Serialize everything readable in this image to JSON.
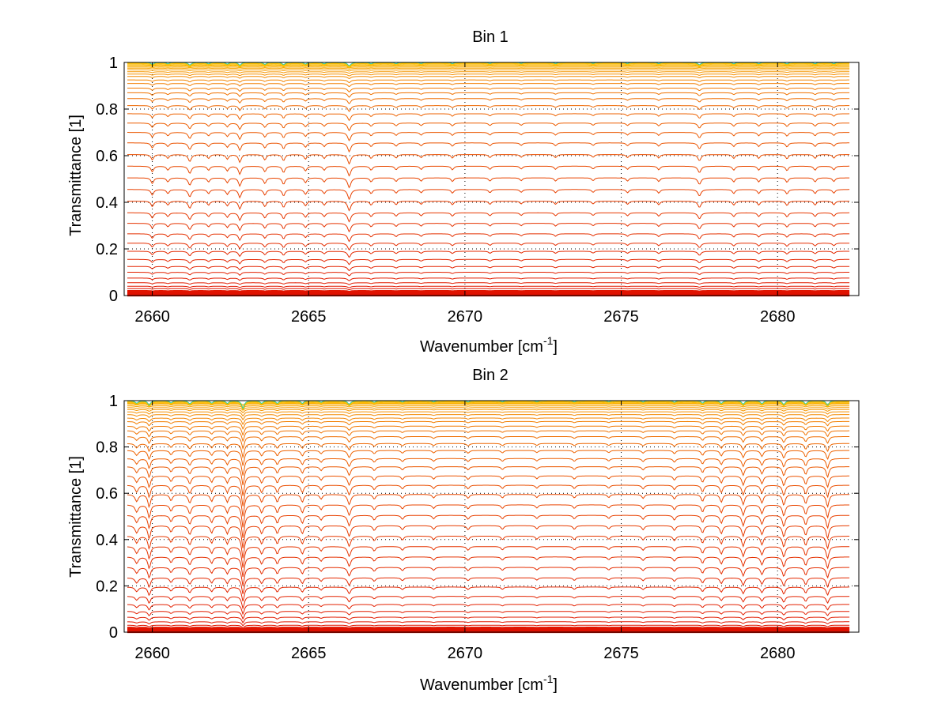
{
  "figure": {
    "background": "#ffffff",
    "axis_color": "#000000",
    "grid_color": "#000000",
    "line_color_low": "#e01000",
    "line_color_high": "#ffcc00",
    "top_edge_color": "#33cc99"
  },
  "chart_data": [
    {
      "type": "line",
      "title": "Bin 1",
      "xlabel": "Wavenumber [cm",
      "xlabel_sup": "-1",
      "xlabel_close": "]",
      "ylabel": "Transmittance [1]",
      "xlim": [
        2659.1,
        2682.6
      ],
      "ylim": [
        0,
        1
      ],
      "grid": true,
      "legend": "none",
      "xticks": [
        2660,
        2665,
        2670,
        2675,
        2680
      ],
      "xtick_labels": [
        "2660",
        "2665",
        "2670",
        "2675",
        "2680"
      ],
      "yticks": [
        0,
        0.2,
        0.4,
        0.6,
        0.8,
        1
      ],
      "ytick_labels": [
        "0",
        "0.2",
        "0.4",
        "0.6",
        "0.8",
        "1"
      ],
      "x_range": [
        2659.2,
        2682.3
      ],
      "series_levels": [
        0.0,
        0.005,
        0.01,
        0.015,
        0.02,
        0.03,
        0.04,
        0.055,
        0.075,
        0.1,
        0.125,
        0.155,
        0.19,
        0.225,
        0.265,
        0.31,
        0.355,
        0.405,
        0.455,
        0.505,
        0.555,
        0.605,
        0.655,
        0.7,
        0.74,
        0.78,
        0.815,
        0.845,
        0.87,
        0.89,
        0.91,
        0.925,
        0.94,
        0.95,
        0.96,
        0.968,
        0.975,
        0.98,
        0.985,
        0.99,
        0.994,
        0.997,
        1.0
      ],
      "absorption_lines": [
        {
          "x": 2660.0,
          "depth": 0.7,
          "width": 0.05
        },
        {
          "x": 2660.5,
          "depth": 0.5,
          "width": 0.05
        },
        {
          "x": 2661.2,
          "depth": 0.9,
          "width": 0.06
        },
        {
          "x": 2661.8,
          "depth": 0.5,
          "width": 0.05
        },
        {
          "x": 2662.4,
          "depth": 0.6,
          "width": 0.05
        },
        {
          "x": 2662.8,
          "depth": 1.0,
          "width": 0.05
        },
        {
          "x": 2663.6,
          "depth": 0.7,
          "width": 0.05
        },
        {
          "x": 2664.2,
          "depth": 0.8,
          "width": 0.05
        },
        {
          "x": 2664.9,
          "depth": 0.6,
          "width": 0.05
        },
        {
          "x": 2665.5,
          "depth": 0.5,
          "width": 0.05
        },
        {
          "x": 2666.3,
          "depth": 1.2,
          "width": 0.06
        },
        {
          "x": 2667.0,
          "depth": 0.5,
          "width": 0.05
        },
        {
          "x": 2667.8,
          "depth": 0.45,
          "width": 0.05
        },
        {
          "x": 2668.6,
          "depth": 0.4,
          "width": 0.05
        },
        {
          "x": 2669.6,
          "depth": 0.45,
          "width": 0.05
        },
        {
          "x": 2670.8,
          "depth": 0.4,
          "width": 0.05
        },
        {
          "x": 2671.8,
          "depth": 0.35,
          "width": 0.05
        },
        {
          "x": 2672.9,
          "depth": 0.4,
          "width": 0.05
        },
        {
          "x": 2674.1,
          "depth": 0.35,
          "width": 0.05
        },
        {
          "x": 2675.2,
          "depth": 0.4,
          "width": 0.05
        },
        {
          "x": 2676.2,
          "depth": 0.45,
          "width": 0.05
        },
        {
          "x": 2677.5,
          "depth": 0.8,
          "width": 0.06
        },
        {
          "x": 2678.6,
          "depth": 0.5,
          "width": 0.05
        },
        {
          "x": 2679.4,
          "depth": 0.5,
          "width": 0.05
        },
        {
          "x": 2680.3,
          "depth": 0.55,
          "width": 0.05
        },
        {
          "x": 2681.2,
          "depth": 0.5,
          "width": 0.05
        },
        {
          "x": 2681.8,
          "depth": 0.45,
          "width": 0.05
        }
      ]
    },
    {
      "type": "line",
      "title": "Bin 2",
      "xlabel": "Wavenumber [cm",
      "xlabel_sup": "-1",
      "xlabel_close": "]",
      "ylabel": "Transmittance [1]",
      "xlim": [
        2659.1,
        2682.6
      ],
      "ylim": [
        0,
        1
      ],
      "grid": true,
      "legend": "none",
      "xticks": [
        2660,
        2665,
        2670,
        2675,
        2680
      ],
      "xtick_labels": [
        "2660",
        "2665",
        "2670",
        "2675",
        "2680"
      ],
      "yticks": [
        0,
        0.2,
        0.4,
        0.6,
        0.8,
        1
      ],
      "ytick_labels": [
        "0",
        "0.2",
        "0.4",
        "0.6",
        "0.8",
        "1"
      ],
      "x_range": [
        2659.2,
        2682.3
      ],
      "series_levels": [
        0.0,
        0.005,
        0.01,
        0.015,
        0.02,
        0.03,
        0.045,
        0.065,
        0.09,
        0.12,
        0.155,
        0.195,
        0.235,
        0.28,
        0.325,
        0.37,
        0.415,
        0.46,
        0.505,
        0.55,
        0.595,
        0.635,
        0.675,
        0.715,
        0.75,
        0.785,
        0.815,
        0.845,
        0.87,
        0.89,
        0.91,
        0.925,
        0.94,
        0.952,
        0.962,
        0.97,
        0.977,
        0.983,
        0.988,
        0.992,
        0.995,
        0.998,
        1.0
      ],
      "absorption_lines": [
        {
          "x": 2659.5,
          "depth": 0.9,
          "width": 0.06
        },
        {
          "x": 2659.9,
          "depth": 1.6,
          "width": 0.05
        },
        {
          "x": 2660.6,
          "depth": 0.8,
          "width": 0.05
        },
        {
          "x": 2661.2,
          "depth": 1.1,
          "width": 0.06
        },
        {
          "x": 2661.9,
          "depth": 0.9,
          "width": 0.05
        },
        {
          "x": 2662.4,
          "depth": 1.0,
          "width": 0.05
        },
        {
          "x": 2662.9,
          "depth": 2.8,
          "width": 0.05
        },
        {
          "x": 2663.5,
          "depth": 1.0,
          "width": 0.05
        },
        {
          "x": 2664.0,
          "depth": 1.0,
          "width": 0.05
        },
        {
          "x": 2664.8,
          "depth": 1.0,
          "width": 0.05
        },
        {
          "x": 2665.4,
          "depth": 0.6,
          "width": 0.05
        },
        {
          "x": 2666.3,
          "depth": 1.3,
          "width": 0.06
        },
        {
          "x": 2667.1,
          "depth": 0.6,
          "width": 0.05
        },
        {
          "x": 2668.0,
          "depth": 0.5,
          "width": 0.05
        },
        {
          "x": 2669.0,
          "depth": 0.45,
          "width": 0.05
        },
        {
          "x": 2670.1,
          "depth": 0.5,
          "width": 0.05
        },
        {
          "x": 2671.2,
          "depth": 0.45,
          "width": 0.05
        },
        {
          "x": 2672.3,
          "depth": 0.4,
          "width": 0.05
        },
        {
          "x": 2673.5,
          "depth": 0.45,
          "width": 0.05
        },
        {
          "x": 2674.6,
          "depth": 0.4,
          "width": 0.05
        },
        {
          "x": 2675.7,
          "depth": 0.5,
          "width": 0.05
        },
        {
          "x": 2676.7,
          "depth": 0.6,
          "width": 0.05
        },
        {
          "x": 2677.6,
          "depth": 0.9,
          "width": 0.05
        },
        {
          "x": 2678.2,
          "depth": 1.0,
          "width": 0.05
        },
        {
          "x": 2678.9,
          "depth": 1.3,
          "width": 0.05
        },
        {
          "x": 2679.5,
          "depth": 1.1,
          "width": 0.05
        },
        {
          "x": 2680.2,
          "depth": 1.4,
          "width": 0.05
        },
        {
          "x": 2680.9,
          "depth": 1.2,
          "width": 0.05
        },
        {
          "x": 2681.6,
          "depth": 1.6,
          "width": 0.05
        }
      ]
    }
  ]
}
